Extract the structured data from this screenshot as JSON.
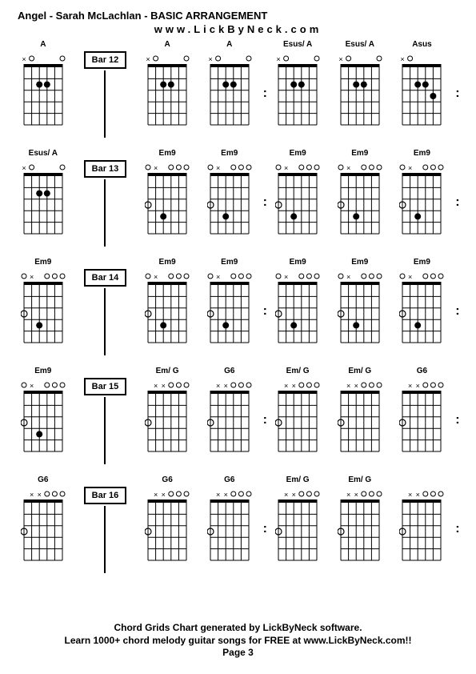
{
  "header": {
    "title": "Angel - Sarah McLachlan - BASIC ARRANGEMENT",
    "subtitle": "www.LickByNeck.com"
  },
  "colors": {
    "background": "#ffffff",
    "line": "#000000",
    "dot": "#000000",
    "open": "#000000",
    "text": "#000000"
  },
  "chord_style": {
    "width": 56,
    "height": 94,
    "frets": 5,
    "strings": 6,
    "nut_height": 4,
    "line_width": 1,
    "dot_radius": 4,
    "open_radius": 3,
    "marker_fontsize": 9
  },
  "rows": [
    {
      "leading": {
        "name": "A",
        "markers": [
          "x",
          "o",
          "",
          "",
          "",
          "o"
        ],
        "dots": [
          [
            4,
            2
          ],
          [
            3,
            2
          ]
        ],
        "open_dots": []
      },
      "bar": "Bar 12",
      "chords": [
        {
          "name": "A",
          "markers": [
            "x",
            "o",
            "",
            "",
            "",
            "o"
          ],
          "dots": [
            [
              4,
              2
            ],
            [
              3,
              2
            ]
          ],
          "open_dots": []
        },
        {
          "name": "A",
          "markers": [
            "x",
            "o",
            "",
            "",
            "",
            "o"
          ],
          "dots": [
            [
              4,
              2
            ],
            [
              3,
              2
            ]
          ],
          "open_dots": []
        },
        {
          "name": "Esus/ A",
          "markers": [
            "x",
            "o",
            "",
            "",
            "",
            "o"
          ],
          "dots": [
            [
              4,
              2
            ],
            [
              3,
              2
            ]
          ],
          "open_dots": []
        },
        {
          "name": "Esus/ A",
          "markers": [
            "x",
            "o",
            "",
            "",
            "",
            "o"
          ],
          "dots": [
            [
              4,
              2
            ],
            [
              3,
              2
            ]
          ],
          "open_dots": []
        },
        {
          "name": "Asus",
          "markers": [
            "x",
            "o",
            "",
            "",
            "",
            ""
          ],
          "dots": [
            [
              4,
              2
            ],
            [
              3,
              2
            ],
            [
              2,
              3
            ]
          ],
          "open_dots": []
        }
      ],
      "trailing_colon": true
    },
    {
      "leading": {
        "name": "Esus/ A",
        "markers": [
          "x",
          "o",
          "",
          "",
          "",
          "o"
        ],
        "dots": [
          [
            4,
            2
          ],
          [
            3,
            2
          ]
        ],
        "open_dots": []
      },
      "bar": "Bar 13",
      "chords": [
        {
          "name": "Em9",
          "markers": [
            "o",
            "x",
            "",
            "o",
            "o",
            "o"
          ],
          "dots": [
            [
              4,
              4
            ]
          ],
          "open_dots": [
            [
              6,
              3
            ]
          ]
        },
        {
          "name": "Em9",
          "markers": [
            "o",
            "x",
            "",
            "o",
            "o",
            "o"
          ],
          "dots": [
            [
              4,
              4
            ]
          ],
          "open_dots": [
            [
              6,
              3
            ]
          ]
        },
        {
          "name": "Em9",
          "markers": [
            "o",
            "x",
            "",
            "o",
            "o",
            "o"
          ],
          "dots": [
            [
              4,
              4
            ]
          ],
          "open_dots": [
            [
              6,
              3
            ]
          ]
        },
        {
          "name": "Em9",
          "markers": [
            "o",
            "x",
            "",
            "o",
            "o",
            "o"
          ],
          "dots": [
            [
              4,
              4
            ]
          ],
          "open_dots": [
            [
              6,
              3
            ]
          ]
        },
        {
          "name": "Em9",
          "markers": [
            "o",
            "x",
            "",
            "o",
            "o",
            "o"
          ],
          "dots": [
            [
              4,
              4
            ]
          ],
          "open_dots": [
            [
              6,
              3
            ]
          ]
        }
      ],
      "trailing_colon": true
    },
    {
      "leading": {
        "name": "Em9",
        "markers": [
          "o",
          "x",
          "",
          "o",
          "o",
          "o"
        ],
        "dots": [
          [
            4,
            4
          ]
        ],
        "open_dots": [
          [
            6,
            3
          ]
        ]
      },
      "bar": "Bar 14",
      "chords": [
        {
          "name": "Em9",
          "markers": [
            "o",
            "x",
            "",
            "o",
            "o",
            "o"
          ],
          "dots": [
            [
              4,
              4
            ]
          ],
          "open_dots": [
            [
              6,
              3
            ]
          ]
        },
        {
          "name": "Em9",
          "markers": [
            "o",
            "x",
            "",
            "o",
            "o",
            "o"
          ],
          "dots": [
            [
              4,
              4
            ]
          ],
          "open_dots": [
            [
              6,
              3
            ]
          ]
        },
        {
          "name": "Em9",
          "markers": [
            "o",
            "x",
            "",
            "o",
            "o",
            "o"
          ],
          "dots": [
            [
              4,
              4
            ]
          ],
          "open_dots": [
            [
              6,
              3
            ]
          ]
        },
        {
          "name": "Em9",
          "markers": [
            "o",
            "x",
            "",
            "o",
            "o",
            "o"
          ],
          "dots": [
            [
              4,
              4
            ]
          ],
          "open_dots": [
            [
              6,
              3
            ]
          ]
        },
        {
          "name": "Em9",
          "markers": [
            "o",
            "x",
            "",
            "o",
            "o",
            "o"
          ],
          "dots": [
            [
              4,
              4
            ]
          ],
          "open_dots": [
            [
              6,
              3
            ]
          ]
        }
      ],
      "trailing_colon": true
    },
    {
      "leading": {
        "name": "Em9",
        "markers": [
          "o",
          "x",
          "",
          "o",
          "o",
          "o"
        ],
        "dots": [
          [
            4,
            4
          ]
        ],
        "open_dots": [
          [
            6,
            3
          ]
        ]
      },
      "bar": "Bar 15",
      "chords": [
        {
          "name": "Em/ G",
          "markers": [
            "",
            "x",
            "x",
            "o",
            "o",
            "o"
          ],
          "dots": [],
          "open_dots": [
            [
              6,
              3
            ]
          ]
        },
        {
          "name": "G6",
          "markers": [
            "",
            "x",
            "x",
            "o",
            "o",
            "o"
          ],
          "dots": [],
          "open_dots": [
            [
              6,
              3
            ]
          ]
        },
        {
          "name": "Em/ G",
          "markers": [
            "",
            "x",
            "x",
            "o",
            "o",
            "o"
          ],
          "dots": [],
          "open_dots": [
            [
              6,
              3
            ]
          ]
        },
        {
          "name": "Em/ G",
          "markers": [
            "",
            "x",
            "x",
            "o",
            "o",
            "o"
          ],
          "dots": [],
          "open_dots": [
            [
              6,
              3
            ]
          ]
        },
        {
          "name": "G6",
          "markers": [
            "",
            "x",
            "x",
            "o",
            "o",
            "o"
          ],
          "dots": [],
          "open_dots": [
            [
              6,
              3
            ]
          ]
        }
      ],
      "trailing_colon": true
    },
    {
      "leading": {
        "name": "G6",
        "markers": [
          "",
          "x",
          "x",
          "o",
          "o",
          "o"
        ],
        "dots": [],
        "open_dots": [
          [
            6,
            3
          ]
        ]
      },
      "bar": "Bar 16",
      "chords": [
        {
          "name": "G6",
          "markers": [
            "",
            "x",
            "x",
            "o",
            "o",
            "o"
          ],
          "dots": [],
          "open_dots": [
            [
              6,
              3
            ]
          ]
        },
        {
          "name": "G6",
          "markers": [
            "",
            "x",
            "x",
            "o",
            "o",
            "o"
          ],
          "dots": [],
          "open_dots": [
            [
              6,
              3
            ]
          ]
        },
        {
          "name": "Em/ G",
          "markers": [
            "",
            "x",
            "x",
            "o",
            "o",
            "o"
          ],
          "dots": [],
          "open_dots": [
            [
              6,
              3
            ]
          ]
        },
        {
          "name": "Em/ G",
          "markers": [
            "",
            "x",
            "x",
            "o",
            "o",
            "o"
          ],
          "dots": [],
          "open_dots": [
            [
              6,
              3
            ]
          ]
        },
        {
          "name": "",
          "markers": [
            "",
            "x",
            "x",
            "o",
            "o",
            "o"
          ],
          "dots": [],
          "open_dots": [
            [
              6,
              3
            ]
          ]
        }
      ],
      "trailing_colon": true
    }
  ],
  "footer": {
    "line1": "Chord Grids Chart generated by LickByNeck software.",
    "line2": "Learn 1000+ chord melody guitar songs for FREE at www.LickByNeck.com!!",
    "page": "Page 3"
  }
}
